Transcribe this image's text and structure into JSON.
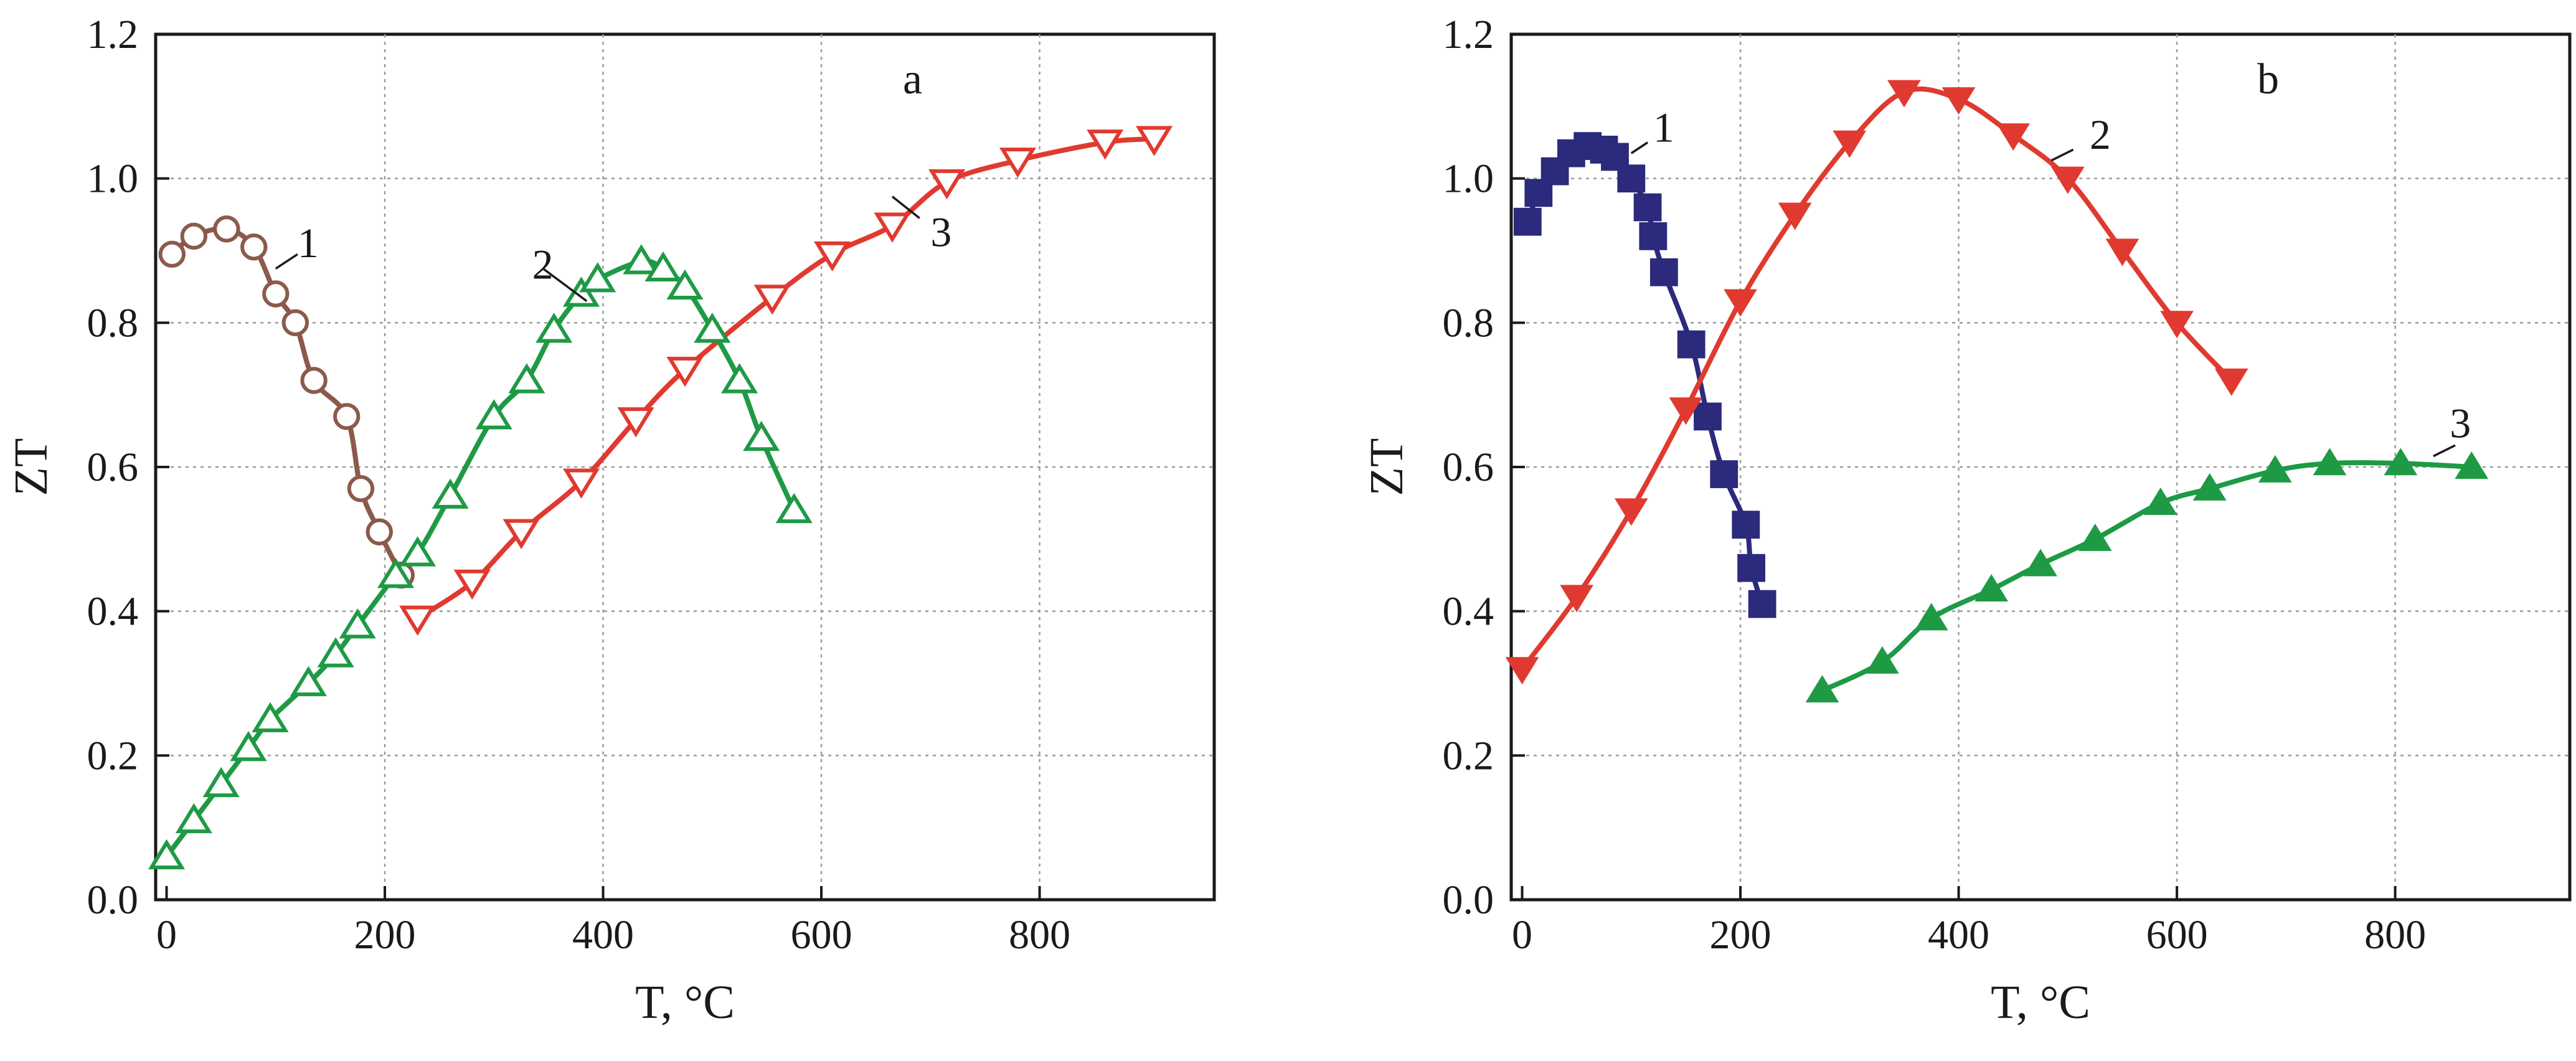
{
  "chart_data": [
    {
      "type": "line",
      "panel_label": "a",
      "xlabel": "T, °C",
      "ylabel": "ZT",
      "xlim": [
        -10,
        960
      ],
      "ylim": [
        0.0,
        1.2
      ],
      "xticks": [
        "0",
        "200",
        "400",
        "600",
        "800"
      ],
      "yticks": [
        "0.0",
        "0.2",
        "0.4",
        "0.6",
        "0.8",
        "1.0",
        "1.2"
      ],
      "grid": true,
      "series": [
        {
          "name": "1",
          "color": "#8b5a4a",
          "marker": "circle-open",
          "x": [
            5,
            25,
            55,
            80,
            100,
            118,
            135,
            165,
            178,
            195,
            215
          ],
          "y": [
            0.895,
            0.92,
            0.93,
            0.905,
            0.84,
            0.8,
            0.72,
            0.67,
            0.57,
            0.51,
            0.45
          ],
          "label_at": [
            120,
            0.91
          ],
          "leader": [
            [
              100,
              0.875
            ],
            [
              120,
              0.895
            ]
          ]
        },
        {
          "name": "2",
          "color": "#1e9a45",
          "marker": "triangle-up-open",
          "x": [
            0,
            25,
            50,
            75,
            95,
            130,
            155,
            175,
            210,
            230,
            260,
            300,
            330,
            355,
            380,
            395,
            435,
            455,
            475,
            500,
            525,
            545,
            575
          ],
          "y": [
            0.06,
            0.11,
            0.16,
            0.21,
            0.25,
            0.3,
            0.34,
            0.38,
            0.45,
            0.48,
            0.56,
            0.67,
            0.72,
            0.79,
            0.84,
            0.86,
            0.885,
            0.875,
            0.85,
            0.79,
            0.72,
            0.64,
            0.54
          ],
          "label_at": [
            335,
            0.88
          ],
          "leader": [
            [
              345,
              0.875
            ],
            [
              385,
              0.83
            ]
          ]
        },
        {
          "name": "3",
          "color": "#e03a30",
          "marker": "triangle-down-open",
          "x": [
            230,
            280,
            325,
            380,
            430,
            475,
            555,
            610,
            665,
            715,
            780,
            860,
            905
          ],
          "y": [
            0.39,
            0.44,
            0.51,
            0.58,
            0.665,
            0.735,
            0.835,
            0.895,
            0.935,
            0.995,
            1.025,
            1.05,
            1.055
          ],
          "label_at": [
            700,
            0.925
          ],
          "leader": [
            [
              690,
              0.945
            ],
            [
              665,
              0.975
            ]
          ]
        }
      ]
    },
    {
      "type": "line",
      "panel_label": "b",
      "xlabel": "T, °C",
      "ylabel": "ZT",
      "xlim": [
        -10,
        960
      ],
      "ylim": [
        0.0,
        1.2
      ],
      "xticks": [
        "0",
        "200",
        "400",
        "600",
        "800"
      ],
      "yticks": [
        "0.0",
        "0.2",
        "0.4",
        "0.6",
        "0.8",
        "1.0",
        "1.2"
      ],
      "grid": true,
      "series": [
        {
          "name": "1",
          "color": "#2b2a7c",
          "marker": "square-filled",
          "x": [
            5,
            15,
            30,
            45,
            60,
            75,
            85,
            100,
            115,
            120,
            130,
            155,
            170,
            185,
            205,
            210,
            220
          ],
          "y": [
            0.94,
            0.98,
            1.01,
            1.035,
            1.045,
            1.04,
            1.03,
            1.0,
            0.96,
            0.92,
            0.87,
            0.77,
            0.67,
            0.59,
            0.52,
            0.46,
            0.41
          ],
          "label_at": [
            120,
            1.07
          ],
          "leader": [
            [
              100,
              1.035
            ],
            [
              115,
              1.05
            ]
          ]
        },
        {
          "name": "2",
          "color": "#e03a30",
          "marker": "triangle-down-filled",
          "x": [
            0,
            50,
            100,
            150,
            200,
            250,
            300,
            350,
            400,
            450,
            500,
            550,
            600,
            650
          ],
          "y": [
            0.32,
            0.42,
            0.54,
            0.68,
            0.83,
            0.95,
            1.05,
            1.12,
            1.11,
            1.06,
            1.0,
            0.9,
            0.8,
            0.72
          ],
          "label_at": [
            520,
            1.06
          ],
          "leader": [
            [
              485,
              1.025
            ],
            [
              505,
              1.04
            ]
          ]
        },
        {
          "name": "3",
          "color": "#1e9a45",
          "marker": "triangle-up-filled",
          "x": [
            275,
            330,
            375,
            430,
            475,
            525,
            585,
            630,
            690,
            740,
            805,
            870
          ],
          "y": [
            0.29,
            0.33,
            0.39,
            0.43,
            0.465,
            0.5,
            0.55,
            0.57,
            0.595,
            0.605,
            0.605,
            0.6
          ],
          "label_at": [
            850,
            0.66
          ],
          "leader": [
            [
              835,
              0.615
            ],
            [
              855,
              0.63
            ]
          ]
        }
      ]
    }
  ]
}
